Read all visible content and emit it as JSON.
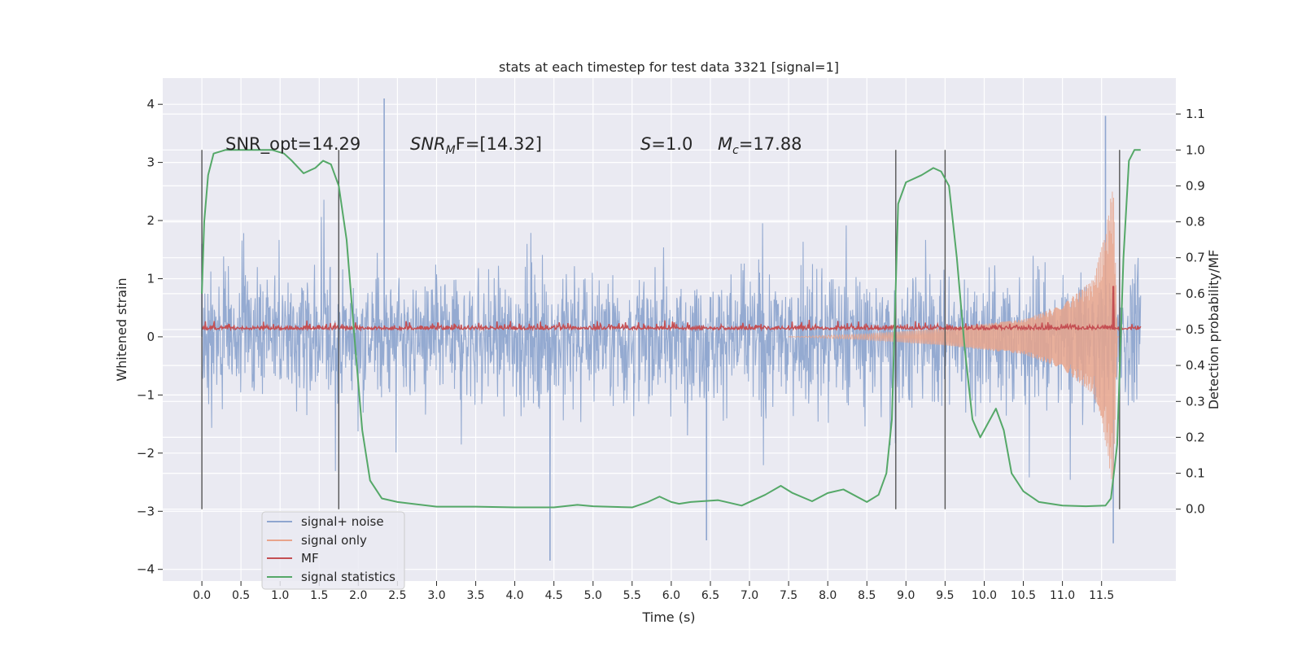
{
  "chart_data": {
    "type": "line",
    "title": "stats at each timestep for test data 3321 [signal=1]",
    "xlabel": "Time (s)",
    "ylabel": "Whitened strain",
    "ylabel_right": "Detection probability/MF",
    "xlim": [
      -0.5,
      12.45
    ],
    "ylim": [
      -4.2,
      4.45
    ],
    "ylim_right": [
      -0.2,
      1.2
    ],
    "x_ticks": [
      "0.0",
      "0.5",
      "1.0",
      "1.5",
      "2.0",
      "2.5",
      "3.0",
      "3.5",
      "4.0",
      "4.5",
      "5.0",
      "5.5",
      "6.0",
      "6.5",
      "7.0",
      "7.5",
      "8.0",
      "8.5",
      "9.0",
      "9.5",
      "10.0",
      "10.5",
      "11.0",
      "11.5"
    ],
    "y_ticks": [
      "4",
      "3",
      "2",
      "1",
      "0",
      "−1",
      "−2",
      "−3",
      "−4"
    ],
    "y_ticks_right": [
      "1.1",
      "1.0",
      "0.9",
      "0.8",
      "0.7",
      "0.6",
      "0.5",
      "0.4",
      "0.3",
      "0.2",
      "0.1",
      "0.0"
    ],
    "grid": true,
    "legend_placement": "lower-left",
    "annotations": {
      "snr_opt": "SNR_opt=14.29",
      "snr_mf_sym": "SNR",
      "snr_mf_sub": "M",
      "snr_mf_rest": "F=[14.32]",
      "s_sym": "S",
      "s_val": "=1.0",
      "mc_sym": "M",
      "mc_sub": "c",
      "mc_val": "=17.88"
    },
    "vertical_lines_x": [
      0.0,
      1.75,
      8.87,
      9.5,
      11.73
    ],
    "series": [
      {
        "name": "signal+ noise",
        "color": "#8fa6cf",
        "note_visual": "dense noise, roughly ±1.4 core with spikes to about ±4",
        "peaks": [
          [
            0.0,
            1.6
          ],
          [
            2.33,
            4.1
          ],
          [
            4.45,
            -3.85
          ],
          [
            6.45,
            -3.5
          ],
          [
            11.55,
            3.8
          ],
          [
            11.65,
            -3.55
          ]
        ]
      },
      {
        "name": "signal only",
        "color": "#e8a48c",
        "note_visual": "chirp with growing amplitude",
        "envelope": [
          [
            8.5,
            0.05
          ],
          [
            9.5,
            0.15
          ],
          [
            10.5,
            0.3
          ],
          [
            11.0,
            0.55
          ],
          [
            11.4,
            1.0
          ],
          [
            11.55,
            1.8
          ],
          [
            11.65,
            2.7
          ],
          [
            11.7,
            0.2
          ]
        ]
      },
      {
        "name": "MF",
        "color": "#c44e52",
        "axis": "right",
        "baseline": 0.5,
        "spike": [
          11.65,
          0.62
        ]
      },
      {
        "name": "signal statistics",
        "color": "#55a868",
        "axis": "right",
        "x": [
          0.0,
          0.03,
          0.08,
          0.15,
          0.3,
          0.6,
          0.9,
          1.05,
          1.15,
          1.3,
          1.45,
          1.55,
          1.65,
          1.75,
          1.85,
          1.95,
          2.05,
          2.15,
          2.3,
          2.5,
          3.0,
          3.5,
          4.0,
          4.5,
          4.8,
          5.0,
          5.5,
          5.7,
          5.85,
          6.0,
          6.1,
          6.25,
          6.6,
          6.9,
          7.2,
          7.4,
          7.55,
          7.8,
          8.0,
          8.2,
          8.5,
          8.65,
          8.75,
          8.82,
          8.9,
          9.0,
          9.2,
          9.35,
          9.45,
          9.55,
          9.65,
          9.75,
          9.85,
          9.95,
          10.05,
          10.15,
          10.25,
          10.35,
          10.5,
          10.7,
          11.0,
          11.3,
          11.55,
          11.62,
          11.7,
          11.78,
          11.85,
          11.92,
          12.0
        ],
        "values": [
          0.6,
          0.8,
          0.93,
          0.99,
          1.0,
          1.0,
          1.0,
          0.99,
          0.97,
          0.935,
          0.95,
          0.97,
          0.96,
          0.9,
          0.75,
          0.48,
          0.22,
          0.08,
          0.03,
          0.02,
          0.007,
          0.007,
          0.005,
          0.005,
          0.012,
          0.008,
          0.005,
          0.02,
          0.035,
          0.02,
          0.015,
          0.02,
          0.025,
          0.01,
          0.04,
          0.065,
          0.045,
          0.022,
          0.045,
          0.055,
          0.02,
          0.04,
          0.1,
          0.25,
          0.85,
          0.91,
          0.93,
          0.95,
          0.94,
          0.9,
          0.7,
          0.45,
          0.25,
          0.2,
          0.24,
          0.28,
          0.22,
          0.1,
          0.05,
          0.02,
          0.01,
          0.008,
          0.01,
          0.03,
          0.18,
          0.7,
          0.97,
          1.0,
          1.0
        ]
      }
    ]
  }
}
